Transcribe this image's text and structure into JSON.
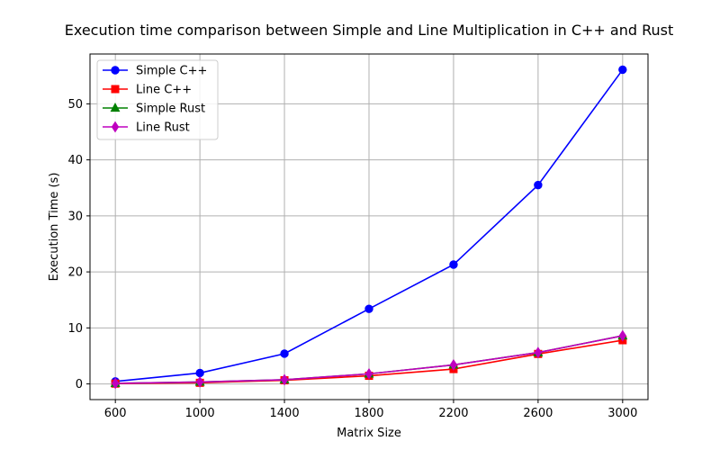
{
  "chart_data": {
    "type": "line",
    "title": "Execution time comparison between Simple and Line Multiplication in C++ and Rust",
    "xlabel": "Matrix Size",
    "ylabel": "Execution Time (s)",
    "x": [
      600,
      1000,
      1400,
      1800,
      2200,
      2600,
      3000
    ],
    "xticks": [
      "600",
      "1000",
      "1400",
      "1800",
      "2200",
      "2600",
      "3000"
    ],
    "yticks": [
      "0",
      "10",
      "20",
      "30",
      "40",
      "50"
    ],
    "ylim": [
      -2.8,
      58.9
    ],
    "grid": true,
    "legend_position": "top-left",
    "series": [
      {
        "name": "Simple C++",
        "color": "#0000ff",
        "marker": "circle",
        "values": [
          0.45,
          1.95,
          5.4,
          13.4,
          21.3,
          35.5,
          56.1
        ]
      },
      {
        "name": "Line C++",
        "color": "#ff0000",
        "marker": "square",
        "values": [
          0.05,
          0.2,
          0.65,
          1.45,
          2.65,
          5.35,
          7.8
        ]
      },
      {
        "name": "Simple Rust",
        "color": "#008000",
        "marker": "triangle",
        "values": [
          0.1,
          0.35,
          0.75,
          1.8,
          3.4,
          5.6,
          8.6
        ]
      },
      {
        "name": "Line Rust",
        "color": "#bf00bf",
        "marker": "diamond",
        "values": [
          0.1,
          0.35,
          0.75,
          1.8,
          3.4,
          5.6,
          8.6
        ]
      }
    ]
  }
}
